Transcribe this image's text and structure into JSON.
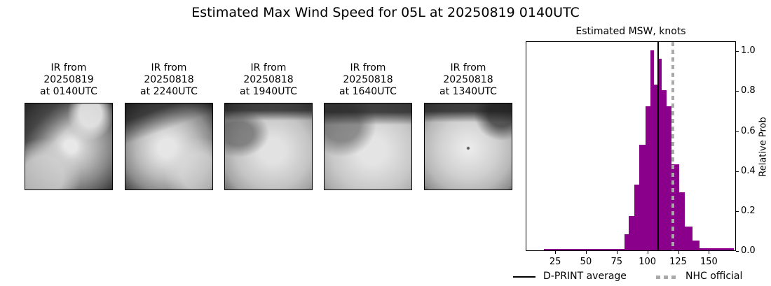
{
  "figure": {
    "title": "Estimated Max Wind Speed for 05L at 20250819 0140UTC"
  },
  "thumbnails": [
    {
      "line1": "IR from",
      "line2": "20250819",
      "line3": "at 0140UTC"
    },
    {
      "line1": "IR from",
      "line2": "20250818",
      "line3": "at 2240UTC"
    },
    {
      "line1": "IR from",
      "line2": "20250818",
      "line3": "at 1940UTC"
    },
    {
      "line1": "IR from",
      "line2": "20250818",
      "line3": "at 1640UTC"
    },
    {
      "line1": "IR from",
      "line2": "20250818",
      "line3": "at 1340UTC"
    }
  ],
  "chart_data": {
    "type": "bar",
    "title": "Estimated MSW, knots",
    "xlabel": "",
    "ylabel": "Relative Prob",
    "xlim": [
      1,
      172
    ],
    "ylim": [
      0,
      1.05
    ],
    "xticks": [
      25,
      50,
      75,
      100,
      125,
      150
    ],
    "yticks": [
      "0.0",
      "0.2",
      "0.4",
      "0.6",
      "0.8",
      "1.0"
    ],
    "histogram": {
      "color": "#8b008b",
      "bins": [
        {
          "x0": 15,
          "x1": 81,
          "value": 0.006
        },
        {
          "x0": 81,
          "x1": 84,
          "value": 0.08
        },
        {
          "x0": 84,
          "x1": 89,
          "value": 0.17
        },
        {
          "x0": 89,
          "x1": 93,
          "value": 0.33
        },
        {
          "x0": 93,
          "x1": 98,
          "value": 0.53
        },
        {
          "x0": 98,
          "x1": 102,
          "value": 0.72
        },
        {
          "x0": 102,
          "x1": 105,
          "value": 1.0
        },
        {
          "x0": 105,
          "x1": 108.5,
          "value": 0.83
        },
        {
          "x0": 108.5,
          "x1": 111,
          "value": 0.96
        },
        {
          "x0": 111,
          "x1": 115,
          "value": 0.8
        },
        {
          "x0": 115,
          "x1": 119,
          "value": 0.72
        },
        {
          "x0": 119,
          "x1": 125,
          "value": 0.43
        },
        {
          "x0": 125,
          "x1": 130,
          "value": 0.29
        },
        {
          "x0": 130,
          "x1": 136,
          "value": 0.12
        },
        {
          "x0": 136,
          "x1": 142,
          "value": 0.05
        },
        {
          "x0": 142,
          "x1": 170,
          "value": 0.01
        }
      ]
    },
    "lines": [
      {
        "name": "D-PRINT average",
        "x": 108,
        "style": "solid",
        "color": "#000000"
      },
      {
        "name": "NHC official",
        "x": 120,
        "style": "dotted",
        "color": "#a9a9a9"
      }
    ],
    "legend": [
      "D-PRINT average",
      "NHC official"
    ],
    "legend_position": "bottom"
  }
}
